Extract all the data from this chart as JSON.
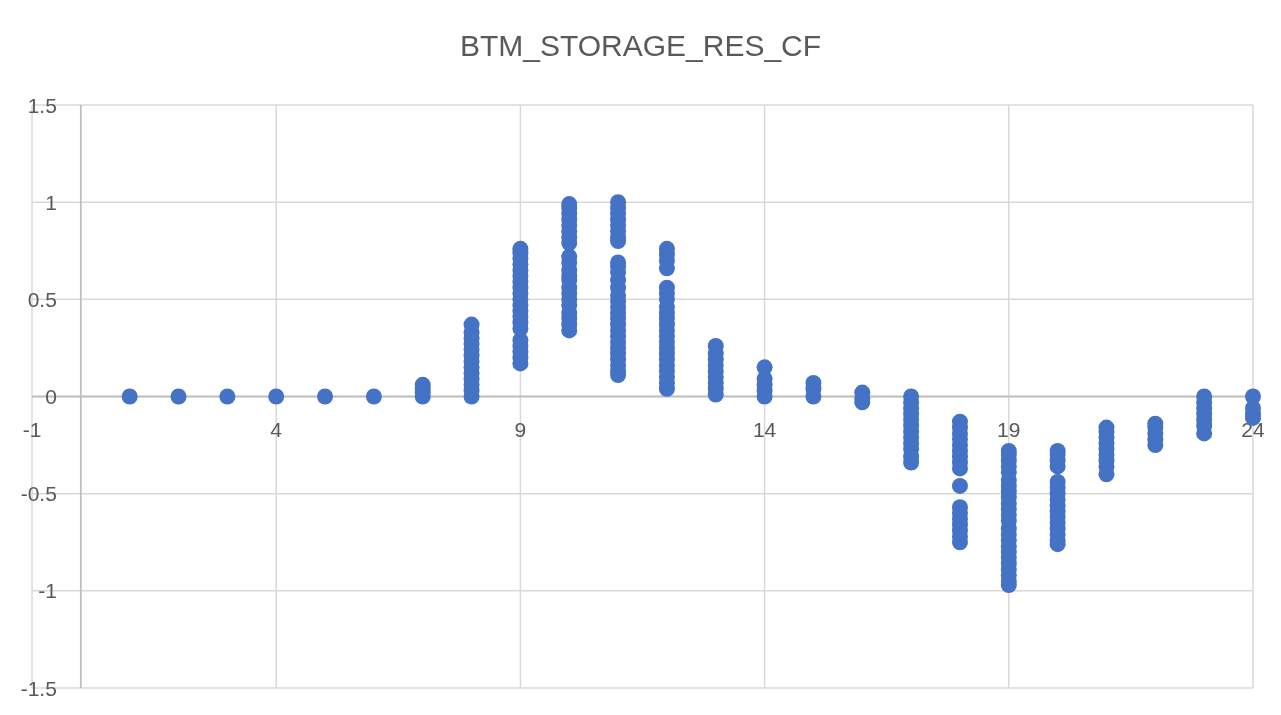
{
  "chart_data": {
    "type": "scatter",
    "title": "BTM_STORAGE_RES_CF",
    "x": [
      1,
      2,
      3,
      4,
      5,
      6,
      7,
      7,
      7,
      7,
      8,
      8,
      8,
      8,
      8,
      8,
      8,
      8,
      8,
      8,
      8,
      8,
      8,
      9,
      9,
      9,
      9,
      9,
      9,
      9,
      9,
      9,
      9,
      9,
      9,
      9,
      9,
      9,
      9,
      9,
      9,
      9,
      9,
      10,
      10,
      10,
      10,
      10,
      10,
      10,
      10,
      10,
      10,
      10,
      10,
      10,
      10,
      10,
      10,
      10,
      10,
      10,
      10,
      10,
      11,
      11,
      11,
      11,
      11,
      11,
      11,
      11,
      11,
      11,
      11,
      11,
      11,
      11,
      11,
      11,
      11,
      11,
      11,
      11,
      11,
      11,
      11,
      11,
      11,
      11,
      11,
      11,
      12,
      12,
      12,
      12,
      12,
      12,
      12,
      12,
      12,
      12,
      12,
      12,
      12,
      12,
      12,
      12,
      12,
      12,
      12,
      12,
      12,
      12,
      13,
      13,
      13,
      13,
      13,
      13,
      13,
      13,
      13,
      14,
      14,
      14,
      14,
      14,
      15,
      15,
      15,
      16,
      16,
      16,
      17,
      17,
      17,
      17,
      17,
      17,
      17,
      17,
      17,
      17,
      17,
      17,
      18,
      18,
      18,
      18,
      18,
      18,
      18,
      18,
      18,
      18,
      18,
      18,
      18,
      18,
      18,
      18,
      18,
      19,
      19,
      19,
      19,
      19,
      19,
      19,
      19,
      19,
      19,
      19,
      19,
      19,
      19,
      19,
      19,
      19,
      19,
      19,
      19,
      19,
      19,
      19,
      19,
      20,
      20,
      20,
      20,
      20,
      20,
      20,
      20,
      20,
      20,
      20,
      20,
      20,
      20,
      20,
      20,
      21,
      21,
      21,
      21,
      21,
      21,
      21,
      21,
      21,
      22,
      22,
      22,
      22,
      22,
      23,
      23,
      23,
      23,
      23,
      23,
      23,
      24,
      24,
      24,
      24
    ],
    "values": [
      0,
      0,
      0,
      0,
      0,
      0,
      0,
      0.02,
      0.04,
      0.06,
      0,
      0.03,
      0.06,
      0.09,
      0.12,
      0.15,
      0.18,
      0.21,
      0.24,
      0.27,
      0.3,
      0.33,
      0.37,
      0.17,
      0.2,
      0.23,
      0.26,
      0.29,
      0.35,
      0.38,
      0.41,
      0.44,
      0.47,
      0.5,
      0.53,
      0.56,
      0.59,
      0.62,
      0.65,
      0.68,
      0.71,
      0.74,
      0.76,
      0.34,
      0.37,
      0.4,
      0.43,
      0.47,
      0.5,
      0.53,
      0.56,
      0.6,
      0.62,
      0.65,
      0.69,
      0.72,
      0.79,
      0.82,
      0.85,
      0.88,
      0.91,
      0.94,
      0.97,
      0.99,
      1,
      0.97,
      0.94,
      0.91,
      0.88,
      0.85,
      0.82,
      0.8,
      0.69,
      0.67,
      0.64,
      0.6,
      0.56,
      0.52,
      0.49,
      0.46,
      0.43,
      0.4,
      0.37,
      0.34,
      0.31,
      0.28,
      0.25,
      0.22,
      0.19,
      0.16,
      0.13,
      0.11,
      0.76,
      0.73,
      0.7,
      0.66,
      0.56,
      0.53,
      0.5,
      0.46,
      0.43,
      0.4,
      0.37,
      0.34,
      0.31,
      0.28,
      0.25,
      0.22,
      0.19,
      0.16,
      0.13,
      0.1,
      0.07,
      0.04,
      0.01,
      0.04,
      0.07,
      0.1,
      0.13,
      0.16,
      0.19,
      0.22,
      0.26,
      0,
      0.03,
      0.06,
      0.09,
      0.15,
      0,
      0.04,
      0.07,
      0.02,
      -0.01,
      -0.03,
      0,
      -0.03,
      -0.06,
      -0.09,
      -0.12,
      -0.15,
      -0.18,
      -0.21,
      -0.24,
      -0.27,
      -0.31,
      -0.34,
      -0.13,
      -0.16,
      -0.19,
      -0.22,
      -0.25,
      -0.28,
      -0.31,
      -0.34,
      -0.37,
      -0.46,
      -0.57,
      -0.6,
      -0.63,
      -0.66,
      -0.69,
      -0.72,
      -0.75,
      -0.28,
      -0.3,
      -0.33,
      -0.36,
      -0.39,
      -0.43,
      -0.46,
      -0.49,
      -0.52,
      -0.55,
      -0.58,
      -0.61,
      -0.64,
      -0.68,
      -0.71,
      -0.74,
      -0.77,
      -0.8,
      -0.83,
      -0.86,
      -0.89,
      -0.92,
      -0.95,
      -0.97,
      -0.28,
      -0.3,
      -0.33,
      -0.36,
      -0.44,
      -0.47,
      -0.5,
      -0.53,
      -0.56,
      -0.59,
      -0.62,
      -0.65,
      -0.68,
      -0.71,
      -0.74,
      -0.76,
      -0.16,
      -0.18,
      -0.21,
      -0.24,
      -0.27,
      -0.3,
      -0.33,
      -0.36,
      -0.4,
      -0.14,
      -0.16,
      -0.19,
      -0.22,
      -0.25,
      0,
      -0.03,
      -0.06,
      -0.09,
      -0.12,
      -0.15,
      -0.19,
      0,
      -0.06,
      -0.09,
      -0.11
    ],
    "color": "#4472c4",
    "xlim": [
      -1,
      24
    ],
    "xticks": [
      -1,
      4,
      9,
      14,
      19,
      24
    ],
    "ylim": [
      -1.5,
      1.5
    ],
    "yticks": [
      -1.5,
      -1,
      -0.5,
      0,
      0.5,
      1,
      1.5
    ],
    "grid": true,
    "marker": "circle"
  }
}
